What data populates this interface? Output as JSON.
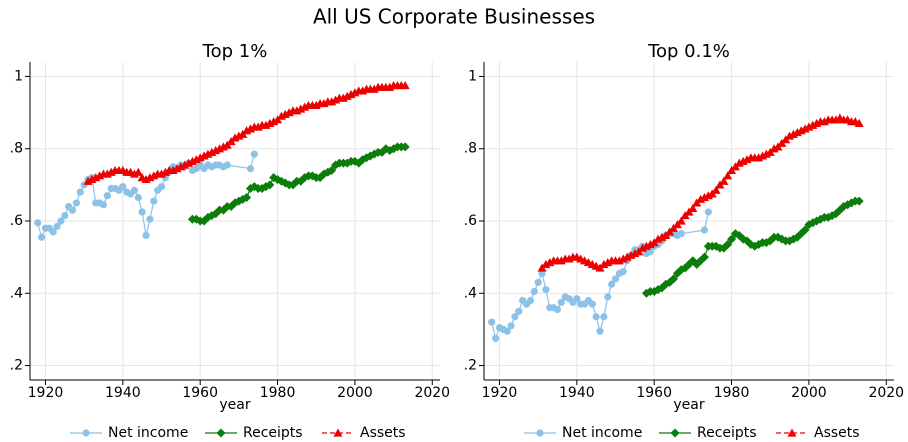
{
  "title": "All US Corporate Businesses",
  "chart_data": [
    {
      "type": "line",
      "title": "Top 1%",
      "xlabel": "year",
      "xlim": [
        1916,
        2022
      ],
      "ylim": [
        0.16,
        1.04
      ],
      "xticks": [
        1920,
        1940,
        1960,
        1980,
        2000,
        2020
      ],
      "yticks": [
        {
          "value": 0.2,
          "label": ".2"
        },
        {
          "value": 0.4,
          "label": ".4"
        },
        {
          "value": 0.6,
          "label": ".6"
        },
        {
          "value": 0.8,
          "label": ".8"
        },
        1
      ],
      "grid": true,
      "series": [
        {
          "name": "Net income",
          "color": "#8cc2e8",
          "marker": "circle",
          "dash": false,
          "x": [
            1918,
            1919,
            1920,
            1921,
            1922,
            1923,
            1924,
            1925,
            1926,
            1927,
            1928,
            1929,
            1930,
            1931,
            1932,
            1933,
            1934,
            1935,
            1936,
            1937,
            1938,
            1939,
            1940,
            1941,
            1942,
            1943,
            1944,
            1945,
            1946,
            1947,
            1948,
            1949,
            1950,
            1951,
            1952,
            1953,
            1954,
            1955,
            1956,
            1957,
            1958,
            1959,
            1960,
            1961,
            1962,
            1963,
            1964,
            1965,
            1966,
            1967,
            1973,
            1974
          ],
          "values": [
            0.595,
            0.555,
            0.58,
            0.58,
            0.57,
            0.585,
            0.6,
            0.615,
            0.64,
            0.63,
            0.65,
            0.68,
            0.7,
            0.715,
            0.72,
            0.65,
            0.65,
            0.645,
            0.67,
            0.69,
            0.69,
            0.685,
            0.695,
            0.68,
            0.675,
            0.685,
            0.665,
            0.625,
            0.56,
            0.605,
            0.655,
            0.685,
            0.695,
            0.72,
            0.735,
            0.75,
            0.745,
            0.755,
            0.75,
            0.76,
            0.74,
            0.745,
            0.755,
            0.745,
            0.755,
            0.75,
            0.755,
            0.755,
            0.75,
            0.755,
            0.745,
            0.785
          ]
        },
        {
          "name": "Receipts",
          "color": "#0a7d0a",
          "marker": "diamond",
          "dash": false,
          "x": [
            1958,
            1959,
            1960,
            1961,
            1962,
            1963,
            1964,
            1965,
            1966,
            1967,
            1968,
            1969,
            1970,
            1971,
            1972,
            1973,
            1974,
            1975,
            1976,
            1977,
            1978,
            1979,
            1980,
            1981,
            1982,
            1983,
            1984,
            1985,
            1986,
            1987,
            1988,
            1989,
            1990,
            1991,
            1992,
            1993,
            1994,
            1995,
            1996,
            1997,
            1998,
            1999,
            2000,
            2001,
            2002,
            2003,
            2004,
            2005,
            2006,
            2007,
            2008,
            2009,
            2010,
            2011,
            2012,
            2013
          ],
          "values": [
            0.605,
            0.605,
            0.6,
            0.6,
            0.61,
            0.615,
            0.62,
            0.63,
            0.63,
            0.64,
            0.64,
            0.65,
            0.655,
            0.66,
            0.665,
            0.69,
            0.695,
            0.69,
            0.69,
            0.695,
            0.7,
            0.72,
            0.715,
            0.71,
            0.705,
            0.7,
            0.7,
            0.71,
            0.71,
            0.72,
            0.725,
            0.725,
            0.72,
            0.72,
            0.73,
            0.735,
            0.74,
            0.755,
            0.76,
            0.76,
            0.76,
            0.765,
            0.765,
            0.76,
            0.77,
            0.775,
            0.78,
            0.785,
            0.79,
            0.79,
            0.8,
            0.795,
            0.8,
            0.805,
            0.805,
            0.805
          ]
        },
        {
          "name": "Assets",
          "color": "#ee0000",
          "marker": "triangle",
          "dash": true,
          "x": [
            1931,
            1932,
            1933,
            1934,
            1935,
            1936,
            1937,
            1938,
            1939,
            1940,
            1941,
            1942,
            1943,
            1944,
            1945,
            1946,
            1947,
            1948,
            1949,
            1950,
            1951,
            1952,
            1953,
            1954,
            1955,
            1956,
            1957,
            1958,
            1959,
            1960,
            1961,
            1962,
            1963,
            1964,
            1965,
            1966,
            1967,
            1968,
            1969,
            1970,
            1971,
            1972,
            1973,
            1974,
            1975,
            1976,
            1977,
            1978,
            1979,
            1980,
            1981,
            1982,
            1983,
            1984,
            1985,
            1986,
            1987,
            1988,
            1989,
            1990,
            1991,
            1992,
            1993,
            1994,
            1995,
            1996,
            1997,
            1998,
            1999,
            2000,
            2001,
            2002,
            2003,
            2004,
            2005,
            2006,
            2007,
            2008,
            2009,
            2010,
            2011,
            2012,
            2013
          ],
          "values": [
            0.71,
            0.715,
            0.72,
            0.725,
            0.73,
            0.73,
            0.735,
            0.74,
            0.74,
            0.74,
            0.735,
            0.735,
            0.73,
            0.735,
            0.72,
            0.715,
            0.72,
            0.725,
            0.73,
            0.73,
            0.735,
            0.74,
            0.74,
            0.745,
            0.75,
            0.755,
            0.76,
            0.765,
            0.77,
            0.775,
            0.78,
            0.785,
            0.79,
            0.795,
            0.8,
            0.805,
            0.81,
            0.82,
            0.83,
            0.835,
            0.84,
            0.85,
            0.855,
            0.86,
            0.86,
            0.865,
            0.865,
            0.87,
            0.875,
            0.88,
            0.89,
            0.895,
            0.9,
            0.905,
            0.905,
            0.91,
            0.915,
            0.92,
            0.92,
            0.92,
            0.925,
            0.925,
            0.93,
            0.93,
            0.935,
            0.94,
            0.94,
            0.945,
            0.95,
            0.955,
            0.96,
            0.96,
            0.965,
            0.965,
            0.965,
            0.97,
            0.97,
            0.97,
            0.97,
            0.975,
            0.975,
            0.975,
            0.975
          ]
        }
      ]
    },
    {
      "type": "line",
      "title": "Top 0.1%",
      "xlabel": "year",
      "xlim": [
        1916,
        2022
      ],
      "ylim": [
        0.16,
        1.04
      ],
      "xticks": [
        1920,
        1940,
        1960,
        1980,
        2000,
        2020
      ],
      "yticks": [
        {
          "value": 0.2,
          "label": ".2"
        },
        {
          "value": 0.4,
          "label": ".4"
        },
        {
          "value": 0.6,
          "label": ".6"
        },
        {
          "value": 0.8,
          "label": ".8"
        },
        1
      ],
      "grid": true,
      "series": [
        {
          "name": "Net income",
          "color": "#8cc2e8",
          "marker": "circle",
          "dash": false,
          "x": [
            1918,
            1919,
            1920,
            1921,
            1922,
            1923,
            1924,
            1925,
            1926,
            1927,
            1928,
            1929,
            1930,
            1931,
            1932,
            1933,
            1934,
            1935,
            1936,
            1937,
            1938,
            1939,
            1940,
            1941,
            1942,
            1943,
            1944,
            1945,
            1946,
            1947,
            1948,
            1949,
            1950,
            1951,
            1952,
            1953,
            1954,
            1955,
            1956,
            1957,
            1958,
            1959,
            1960,
            1961,
            1962,
            1963,
            1964,
            1965,
            1966,
            1967,
            1973,
            1974
          ],
          "values": [
            0.32,
            0.275,
            0.305,
            0.3,
            0.295,
            0.31,
            0.335,
            0.35,
            0.38,
            0.37,
            0.38,
            0.405,
            0.43,
            0.455,
            0.41,
            0.36,
            0.36,
            0.355,
            0.375,
            0.39,
            0.385,
            0.375,
            0.385,
            0.37,
            0.37,
            0.38,
            0.37,
            0.335,
            0.295,
            0.335,
            0.39,
            0.425,
            0.44,
            0.455,
            0.46,
            0.49,
            0.505,
            0.52,
            0.52,
            0.53,
            0.51,
            0.515,
            0.53,
            0.535,
            0.545,
            0.56,
            0.565,
            0.565,
            0.56,
            0.565,
            0.575,
            0.625
          ]
        },
        {
          "name": "Receipts",
          "color": "#0a7d0a",
          "marker": "diamond",
          "dash": false,
          "x": [
            1958,
            1959,
            1960,
            1961,
            1962,
            1963,
            1964,
            1965,
            1966,
            1967,
            1968,
            1969,
            1970,
            1971,
            1972,
            1973,
            1974,
            1975,
            1976,
            1977,
            1978,
            1979,
            1980,
            1981,
            1982,
            1983,
            1984,
            1985,
            1986,
            1987,
            1988,
            1989,
            1990,
            1991,
            1992,
            1993,
            1994,
            1995,
            1996,
            1997,
            1998,
            1999,
            2000,
            2001,
            2002,
            2003,
            2004,
            2005,
            2006,
            2007,
            2008,
            2009,
            2010,
            2011,
            2012,
            2013
          ],
          "values": [
            0.4,
            0.405,
            0.405,
            0.41,
            0.415,
            0.425,
            0.43,
            0.44,
            0.455,
            0.465,
            0.47,
            0.48,
            0.49,
            0.48,
            0.49,
            0.5,
            0.53,
            0.53,
            0.53,
            0.525,
            0.525,
            0.535,
            0.55,
            0.565,
            0.56,
            0.55,
            0.545,
            0.535,
            0.53,
            0.535,
            0.54,
            0.54,
            0.545,
            0.555,
            0.555,
            0.55,
            0.545,
            0.545,
            0.55,
            0.555,
            0.565,
            0.575,
            0.59,
            0.595,
            0.6,
            0.605,
            0.61,
            0.61,
            0.615,
            0.62,
            0.63,
            0.64,
            0.645,
            0.65,
            0.655,
            0.655
          ]
        },
        {
          "name": "Assets",
          "color": "#ee0000",
          "marker": "triangle",
          "dash": true,
          "x": [
            1931,
            1932,
            1933,
            1934,
            1935,
            1936,
            1937,
            1938,
            1939,
            1940,
            1941,
            1942,
            1943,
            1944,
            1945,
            1946,
            1947,
            1948,
            1949,
            1950,
            1951,
            1952,
            1953,
            1954,
            1955,
            1956,
            1957,
            1958,
            1959,
            1960,
            1961,
            1962,
            1963,
            1964,
            1965,
            1966,
            1967,
            1968,
            1969,
            1970,
            1971,
            1972,
            1973,
            1974,
            1975,
            1976,
            1977,
            1978,
            1979,
            1980,
            1981,
            1982,
            1983,
            1984,
            1985,
            1986,
            1987,
            1988,
            1989,
            1990,
            1991,
            1992,
            1993,
            1994,
            1995,
            1996,
            1997,
            1998,
            1999,
            2000,
            2001,
            2002,
            2003,
            2004,
            2005,
            2006,
            2007,
            2008,
            2009,
            2010,
            2011,
            2012,
            2013
          ],
          "values": [
            0.47,
            0.48,
            0.485,
            0.49,
            0.49,
            0.49,
            0.495,
            0.495,
            0.5,
            0.5,
            0.495,
            0.49,
            0.485,
            0.48,
            0.475,
            0.47,
            0.48,
            0.485,
            0.49,
            0.49,
            0.49,
            0.495,
            0.5,
            0.505,
            0.51,
            0.515,
            0.525,
            0.53,
            0.535,
            0.54,
            0.55,
            0.555,
            0.56,
            0.57,
            0.58,
            0.59,
            0.6,
            0.615,
            0.625,
            0.635,
            0.65,
            0.66,
            0.665,
            0.67,
            0.675,
            0.685,
            0.7,
            0.71,
            0.725,
            0.74,
            0.75,
            0.76,
            0.765,
            0.77,
            0.775,
            0.775,
            0.775,
            0.78,
            0.785,
            0.79,
            0.8,
            0.805,
            0.815,
            0.825,
            0.835,
            0.84,
            0.845,
            0.85,
            0.855,
            0.86,
            0.865,
            0.87,
            0.875,
            0.875,
            0.88,
            0.88,
            0.88,
            0.885,
            0.88,
            0.88,
            0.875,
            0.875,
            0.87
          ]
        }
      ]
    }
  ]
}
